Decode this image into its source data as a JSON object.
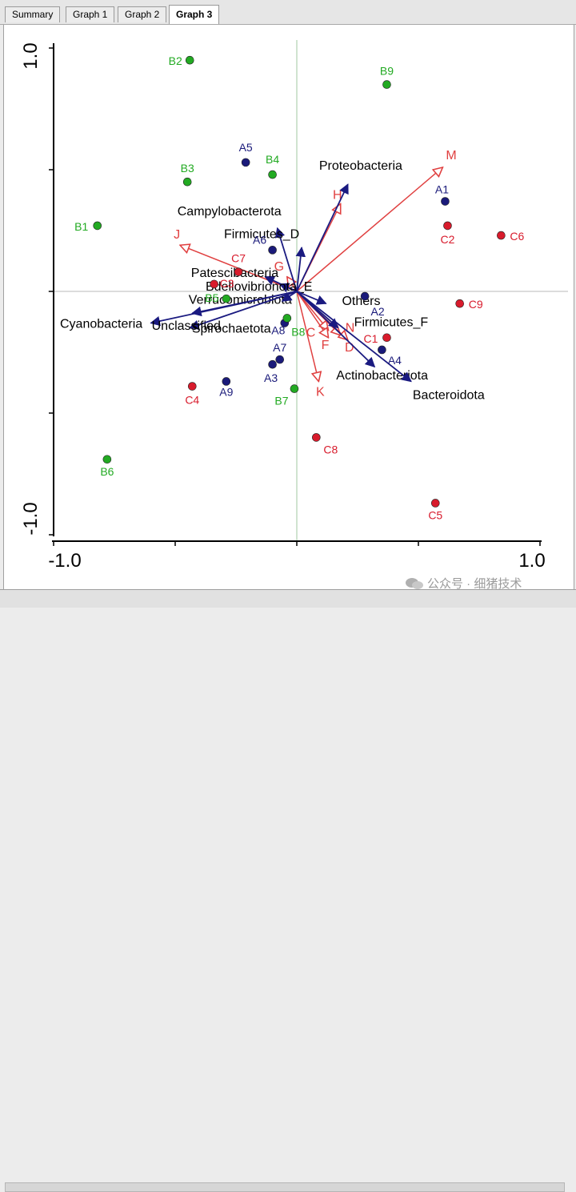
{
  "tabs": [
    {
      "label": "Summary",
      "active": false
    },
    {
      "label": "Graph 1",
      "active": false
    },
    {
      "label": "Graph 2",
      "active": false
    },
    {
      "label": "Graph 3",
      "active": true
    }
  ],
  "watermark": {
    "text": "公众号 · 细猪技术",
    "icon": "wechat-icon"
  },
  "colors": {
    "A": "#1a1a7a",
    "B": "#22aa22",
    "C": "#d81b2c",
    "species": "#1a1a80",
    "env": "#e04040",
    "axis": "#000000",
    "crosshair": "#a0c8a0"
  },
  "chart_data": {
    "type": "scatter",
    "title": "",
    "xlim": [
      -1.0,
      1.0
    ],
    "ylim": [
      -1.0,
      1.0
    ],
    "x_tick_labels": [
      "-1.0",
      "1.0"
    ],
    "y_tick_labels": [
      "1.0",
      "-1.0"
    ],
    "x_ticks": [
      -1.0,
      -0.5,
      0.0,
      0.5,
      1.0
    ],
    "y_ticks": [
      -1.0,
      -0.5,
      0.0,
      0.5,
      1.0
    ],
    "samples": [
      {
        "label": "A1",
        "group": "A",
        "x": 0.61,
        "y": 0.37
      },
      {
        "label": "A2",
        "group": "A",
        "x": 0.28,
        "y": -0.02
      },
      {
        "label": "A3",
        "group": "A",
        "x": -0.1,
        "y": -0.3
      },
      {
        "label": "A4",
        "group": "A",
        "x": 0.35,
        "y": -0.24
      },
      {
        "label": "A5",
        "group": "A",
        "x": -0.21,
        "y": 0.53
      },
      {
        "label": "A6",
        "group": "A",
        "x": -0.1,
        "y": 0.17
      },
      {
        "label": "A7",
        "group": "A",
        "x": -0.07,
        "y": -0.28
      },
      {
        "label": "A8",
        "group": "A",
        "x": -0.05,
        "y": -0.13
      },
      {
        "label": "A9",
        "group": "A",
        "x": -0.29,
        "y": -0.37
      },
      {
        "label": "B1",
        "group": "B",
        "x": -0.82,
        "y": 0.27
      },
      {
        "label": "B2",
        "group": "B",
        "x": -0.44,
        "y": 0.95
      },
      {
        "label": "B3",
        "group": "B",
        "x": -0.45,
        "y": 0.45
      },
      {
        "label": "B4",
        "group": "B",
        "x": -0.1,
        "y": 0.48
      },
      {
        "label": "B5",
        "group": "B",
        "x": -0.29,
        "y": -0.03
      },
      {
        "label": "B6",
        "group": "B",
        "x": -0.78,
        "y": -0.69
      },
      {
        "label": "B7",
        "group": "B",
        "x": -0.01,
        "y": -0.4
      },
      {
        "label": "B8",
        "group": "B",
        "x": -0.04,
        "y": -0.11
      },
      {
        "label": "B9",
        "group": "B",
        "x": 0.37,
        "y": 0.85
      },
      {
        "label": "C1",
        "group": "C",
        "x": 0.37,
        "y": -0.19
      },
      {
        "label": "C2",
        "group": "C",
        "x": 0.62,
        "y": 0.27
      },
      {
        "label": "C3",
        "group": "C",
        "x": -0.34,
        "y": 0.03
      },
      {
        "label": "C4",
        "group": "C",
        "x": -0.43,
        "y": -0.39
      },
      {
        "label": "C5",
        "group": "C",
        "x": 0.57,
        "y": -0.87
      },
      {
        "label": "C6",
        "group": "C",
        "x": 0.84,
        "y": 0.23
      },
      {
        "label": "C7",
        "group": "C",
        "x": -0.24,
        "y": 0.08
      },
      {
        "label": "C8",
        "group": "C",
        "x": 0.08,
        "y": -0.6
      },
      {
        "label": "C9",
        "group": "C",
        "x": 0.67,
        "y": -0.05
      }
    ],
    "species_vectors": [
      {
        "label": "Proteobacteria",
        "x": 0.21,
        "y": 0.44
      },
      {
        "label": "Campylobacterota",
        "x": -0.08,
        "y": 0.26
      },
      {
        "label": "Firmicutes_D",
        "x": 0.02,
        "y": 0.18
      },
      {
        "label": "Patescibacteria",
        "x": -0.13,
        "y": 0.06
      },
      {
        "label": "Bdellovibrionota_E",
        "x": -0.07,
        "y": 0.03
      },
      {
        "label": "Others",
        "x": 0.12,
        "y": -0.05
      },
      {
        "label": "Verrucomicrobiota",
        "x": -0.43,
        "y": -0.09
      },
      {
        "label": "Cyanobacteria",
        "x": -0.6,
        "y": -0.13
      },
      {
        "label": "Spirochaetota",
        "x": -0.44,
        "y": -0.15
      },
      {
        "label": "Unclassified",
        "x": -0.06,
        "y": -0.04
      },
      {
        "label": "Firmicutes_F",
        "x": 0.17,
        "y": -0.15
      },
      {
        "label": "Actinobacteriota",
        "x": 0.32,
        "y": -0.31
      },
      {
        "label": "Bacteroidota",
        "x": 0.47,
        "y": -0.37
      }
    ],
    "env_vectors": [
      {
        "label": "M",
        "x": 0.6,
        "y": 0.51
      },
      {
        "label": "H",
        "x": 0.18,
        "y": 0.36
      },
      {
        "label": "J",
        "x": -0.48,
        "y": 0.19
      },
      {
        "label": "G",
        "x": -0.04,
        "y": 0.06
      },
      {
        "label": "N",
        "x": 0.18,
        "y": -0.18
      },
      {
        "label": "C",
        "x": 0.13,
        "y": -0.16
      },
      {
        "label": "F",
        "x": 0.13,
        "y": -0.19
      },
      {
        "label": "D",
        "x": 0.21,
        "y": -0.2
      },
      {
        "label": "K",
        "x": 0.09,
        "y": -0.37
      }
    ]
  }
}
